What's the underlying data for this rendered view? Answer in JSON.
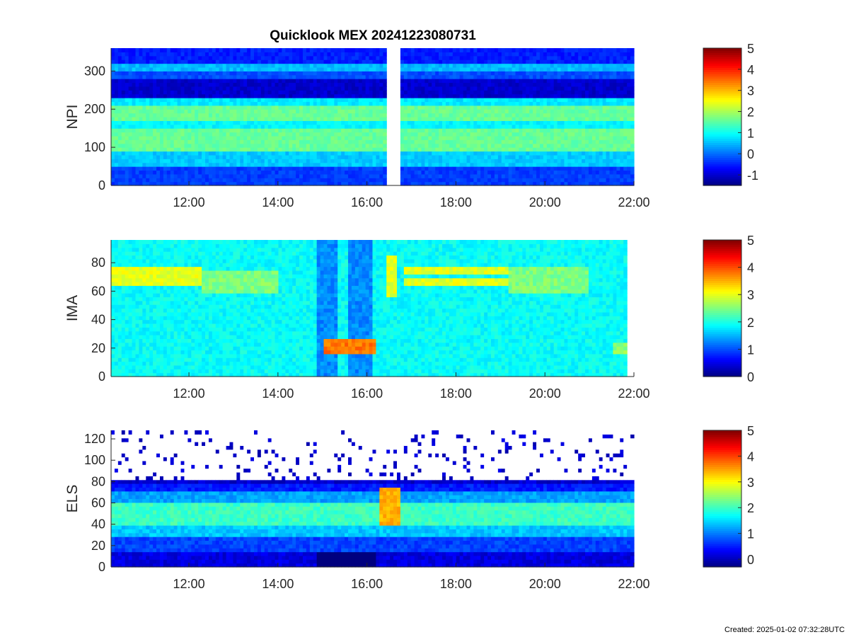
{
  "figure": {
    "title": "Quicklook MEX 20241223080731",
    "created": "Created: 2025-01-02 07:32:28UTC"
  },
  "colormap": [
    "#00007f",
    "#0000ff",
    "#007fff",
    "#00ffff",
    "#7fff7f",
    "#ffff00",
    "#ff7f00",
    "#ff0000",
    "#7f0000"
  ],
  "chart_data": [
    {
      "type": "heatmap",
      "name": "NPI",
      "title": "Quicklook MEX 20241223080731",
      "ylabel": "NPI",
      "xlabel": "",
      "x_ticks": [
        "12:00",
        "14:00",
        "16:00",
        "18:00",
        "20:00",
        "22:00"
      ],
      "x_range_hours": [
        10.25,
        22.0
      ],
      "y_ticks": [
        0,
        100,
        200,
        300
      ],
      "ylim": [
        0,
        360
      ],
      "colorbar": {
        "ticks": [
          5,
          4,
          3,
          2,
          1,
          0,
          -1
        ],
        "range": [
          -1.5,
          5
        ]
      },
      "data_gap_hours": [
        16.45,
        16.72
      ],
      "data_end_hours": 22.0,
      "bands": [
        {
          "y": [
            0,
            50
          ],
          "level": -0.3
        },
        {
          "y": [
            50,
            90
          ],
          "level": 0.6
        },
        {
          "y": [
            90,
            150
          ],
          "level": 1.6
        },
        {
          "y": [
            150,
            175
          ],
          "level": 0.9
        },
        {
          "y": [
            175,
            215
          ],
          "level": 1.6
        },
        {
          "y": [
            215,
            235
          ],
          "level": 0.8
        },
        {
          "y": [
            235,
            285
          ],
          "level": -1.0
        },
        {
          "y": [
            285,
            300
          ],
          "level": -0.2
        },
        {
          "y": [
            300,
            325
          ],
          "level": 0.5
        },
        {
          "y": [
            325,
            360
          ],
          "level": -0.5
        }
      ]
    },
    {
      "type": "heatmap",
      "name": "IMA",
      "title": "",
      "ylabel": "IMA",
      "xlabel": "",
      "x_ticks": [
        "12:00",
        "14:00",
        "16:00",
        "18:00",
        "20:00",
        "22:00"
      ],
      "x_range_hours": [
        10.25,
        22.0
      ],
      "y_ticks": [
        0,
        20,
        40,
        60,
        80
      ],
      "ylim": [
        0,
        96
      ],
      "colorbar": {
        "ticks": [
          5,
          4,
          3,
          2,
          1,
          0
        ],
        "range": [
          0,
          5
        ]
      },
      "data_end_hours": 21.85,
      "background_level": 1.9,
      "features": [
        {
          "t": [
            10.25,
            12.3
          ],
          "y": [
            70,
            77
          ],
          "level": 3.0
        },
        {
          "t": [
            10.25,
            12.3
          ],
          "y": [
            63,
            68
          ],
          "level": 3.0
        },
        {
          "t": [
            12.3,
            14.0
          ],
          "y": [
            60,
            75
          ],
          "level": 2.5
        },
        {
          "t": [
            14.9,
            15.35
          ],
          "y": [
            0,
            96
          ],
          "level": 1.3
        },
        {
          "t": [
            15.6,
            16.1
          ],
          "y": [
            0,
            96
          ],
          "level": 1.3
        },
        {
          "t": [
            15.0,
            16.2
          ],
          "y": [
            17,
            26
          ],
          "level": 3.8
        },
        {
          "t": [
            16.4,
            16.7
          ],
          "y": [
            55,
            85
          ],
          "level": 3.0
        },
        {
          "t": [
            16.8,
            19.2
          ],
          "y": [
            72,
            78
          ],
          "level": 3.0
        },
        {
          "t": [
            16.8,
            19.2
          ],
          "y": [
            64,
            69
          ],
          "level": 3.0
        },
        {
          "t": [
            19.2,
            21.0
          ],
          "y": [
            58,
            76
          ],
          "level": 2.5
        },
        {
          "t": [
            21.5,
            21.85
          ],
          "y": [
            17,
            25
          ],
          "level": 2.6
        }
      ]
    },
    {
      "type": "heatmap",
      "name": "ELS",
      "title": "",
      "ylabel": "ELS",
      "xlabel": "",
      "x_ticks": [
        "12:00",
        "14:00",
        "16:00",
        "18:00",
        "20:00",
        "22:00"
      ],
      "x_range_hours": [
        10.25,
        22.0
      ],
      "y_ticks": [
        0,
        20,
        40,
        60,
        80,
        100,
        120
      ],
      "ylim": [
        0,
        128
      ],
      "colorbar": {
        "ticks": [
          5,
          4,
          3,
          2,
          1,
          0
        ],
        "range": [
          -0.3,
          5
        ]
      },
      "data_end_hours": 22.0,
      "profile": [
        {
          "y": [
            0,
            15
          ],
          "level": 0.2
        },
        {
          "y": [
            15,
            28
          ],
          "level": 0.7
        },
        {
          "y": [
            28,
            38
          ],
          "level": 1.4
        },
        {
          "y": [
            38,
            62
          ],
          "level": 2.0
        },
        {
          "y": [
            62,
            72
          ],
          "level": 1.2
        },
        {
          "y": [
            72,
            80
          ],
          "level": 0.5
        },
        {
          "y": [
            80,
            128
          ],
          "level": 0.1
        }
      ],
      "features": [
        {
          "t": [
            16.3,
            16.75
          ],
          "y": [
            40,
            75
          ],
          "level": 3.4
        },
        {
          "t": [
            14.9,
            16.2
          ],
          "y": [
            0,
            15
          ],
          "level": -1.0
        }
      ]
    }
  ]
}
